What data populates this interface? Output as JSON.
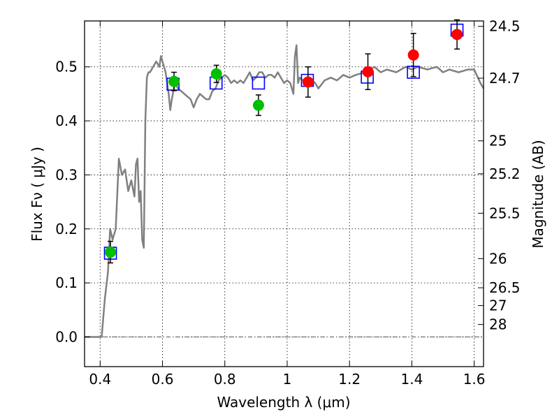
{
  "chart_data": {
    "type": "scatter",
    "xlabel": "Wavelength  λ (μm)",
    "ylabel": "Flux  Fν  ( μJy )",
    "ylabel_right": "Magnitude (AB)",
    "xlim": [
      0.35,
      1.63
    ],
    "ylim": [
      -0.055,
      0.585
    ],
    "grid": true,
    "x_ticks": [
      0.4,
      0.6,
      0.8,
      1.0,
      1.2,
      1.4,
      1.6
    ],
    "x_tick_labels": [
      "0.4",
      "0.6",
      "0.8",
      "1",
      "1.2",
      "1.4",
      "1.6"
    ],
    "y_ticks": [
      0.0,
      0.1,
      0.2,
      0.3,
      0.4,
      0.5
    ],
    "y_tick_labels": [
      "0.0",
      "0.1",
      "0.2",
      "0.3",
      "0.4",
      "0.5"
    ],
    "right_ticks": [
      {
        "label": "24.5",
        "flux": 0.575
      },
      {
        "label": "24.7",
        "flux": 0.479
      },
      {
        "label": "25",
        "flux": 0.363
      },
      {
        "label": "25.2",
        "flux": 0.302
      },
      {
        "label": "25.5",
        "flux": 0.229
      },
      {
        "label": "26",
        "flux": 0.145
      },
      {
        "label": "26.5",
        "flux": 0.091
      },
      {
        "label": "27",
        "flux": 0.058
      },
      {
        "label": "28",
        "flux": 0.023
      }
    ],
    "series": [
      {
        "marker": "line",
        "color": "#808080",
        "x": [
          0.35,
          0.405,
          0.415,
          0.425,
          0.432,
          0.44,
          0.45,
          0.46,
          0.47,
          0.48,
          0.49,
          0.5,
          0.51,
          0.515,
          0.52,
          0.525,
          0.53,
          0.535,
          0.54,
          0.545,
          0.55,
          0.555,
          0.56,
          0.57,
          0.58,
          0.59,
          0.595,
          0.6,
          0.61,
          0.62,
          0.625,
          0.63,
          0.64,
          0.65,
          0.66,
          0.67,
          0.68,
          0.69,
          0.7,
          0.71,
          0.72,
          0.73,
          0.74,
          0.75,
          0.76,
          0.77,
          0.78,
          0.79,
          0.8,
          0.81,
          0.82,
          0.83,
          0.84,
          0.85,
          0.86,
          0.87,
          0.88,
          0.89,
          0.9,
          0.91,
          0.92,
          0.93,
          0.94,
          0.95,
          0.96,
          0.97,
          0.98,
          0.99,
          1.0,
          1.01,
          1.02,
          1.025,
          1.03,
          1.035,
          1.04,
          1.05,
          1.06,
          1.07,
          1.08,
          1.09,
          1.1,
          1.12,
          1.14,
          1.16,
          1.18,
          1.2,
          1.22,
          1.25,
          1.28,
          1.3,
          1.32,
          1.35,
          1.38,
          1.4,
          1.42,
          1.45,
          1.48,
          1.5,
          1.52,
          1.55,
          1.58,
          1.6,
          1.62,
          1.63
        ],
        "values": [
          0.0,
          0.0,
          0.07,
          0.12,
          0.2,
          0.18,
          0.2,
          0.33,
          0.3,
          0.31,
          0.27,
          0.29,
          0.26,
          0.32,
          0.33,
          0.25,
          0.27,
          0.18,
          0.165,
          0.4,
          0.48,
          0.49,
          0.49,
          0.5,
          0.51,
          0.5,
          0.52,
          0.51,
          0.49,
          0.45,
          0.42,
          0.44,
          0.47,
          0.46,
          0.455,
          0.45,
          0.445,
          0.44,
          0.425,
          0.44,
          0.45,
          0.445,
          0.44,
          0.44,
          0.455,
          0.46,
          0.475,
          0.48,
          0.485,
          0.48,
          0.47,
          0.475,
          0.47,
          0.475,
          0.47,
          0.48,
          0.49,
          0.475,
          0.48,
          0.49,
          0.49,
          0.48,
          0.485,
          0.485,
          0.48,
          0.49,
          0.48,
          0.47,
          0.475,
          0.47,
          0.45,
          0.52,
          0.54,
          0.47,
          0.48,
          0.475,
          0.47,
          0.48,
          0.475,
          0.47,
          0.46,
          0.475,
          0.48,
          0.475,
          0.485,
          0.48,
          0.485,
          0.49,
          0.5,
          0.49,
          0.495,
          0.49,
          0.5,
          0.495,
          0.5,
          0.495,
          0.5,
          0.49,
          0.495,
          0.49,
          0.495,
          0.495,
          0.47,
          0.46
        ]
      },
      {
        "marker": "open-square",
        "color": "#0000ff",
        "x": [
          0.433,
          0.634,
          0.772,
          0.908,
          1.065,
          1.257,
          1.405,
          1.545
        ],
        "values": [
          0.155,
          0.468,
          0.47,
          0.47,
          0.475,
          0.481,
          0.49,
          0.568
        ]
      },
      {
        "marker": "filled-circle",
        "color": "#00bf00",
        "x": [
          0.433,
          0.637,
          0.773,
          0.908
        ],
        "values": [
          0.157,
          0.473,
          0.487,
          0.429
        ],
        "errors": [
          0.02,
          0.017,
          0.016,
          0.019
        ]
      },
      {
        "marker": "filled-circle",
        "color": "#ff0000",
        "x": [
          1.067,
          1.259,
          1.405,
          1.545
        ],
        "values": [
          0.472,
          0.491,
          0.522,
          0.56
        ],
        "errors": [
          0.028,
          0.033,
          0.04,
          0.027
        ]
      }
    ]
  }
}
